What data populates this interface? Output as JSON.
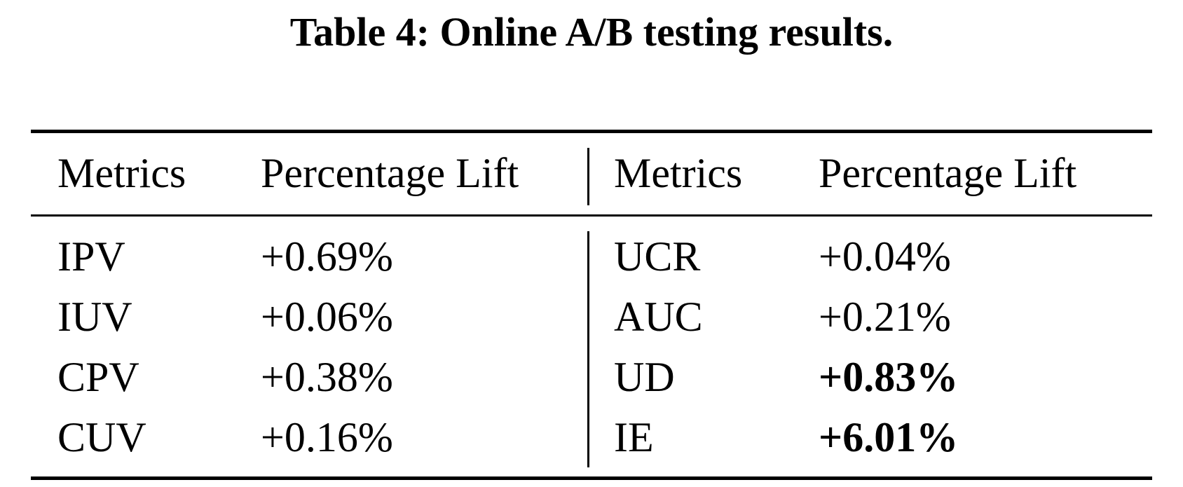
{
  "caption": "Table 4: Online A/B testing results.",
  "headers": {
    "left_metric": "Metrics",
    "left_lift": "Percentage Lift",
    "right_metric": "Metrics",
    "right_lift": "Percentage Lift"
  },
  "rows": [
    {
      "left_metric": "IPV",
      "left_lift": "+0.69%",
      "right_metric": "UCR",
      "right_lift": "+0.04%",
      "right_lift_bold": false
    },
    {
      "left_metric": "IUV",
      "left_lift": "+0.06%",
      "right_metric": "AUC",
      "right_lift": "+0.21%",
      "right_lift_bold": false
    },
    {
      "left_metric": "CPV",
      "left_lift": "+0.38%",
      "right_metric": "UD",
      "right_lift": "+0.83%",
      "right_lift_bold": true
    },
    {
      "left_metric": "CUV",
      "left_lift": "+0.16%",
      "right_metric": "IE",
      "right_lift": "+6.01%",
      "right_lift_bold": true
    }
  ]
}
